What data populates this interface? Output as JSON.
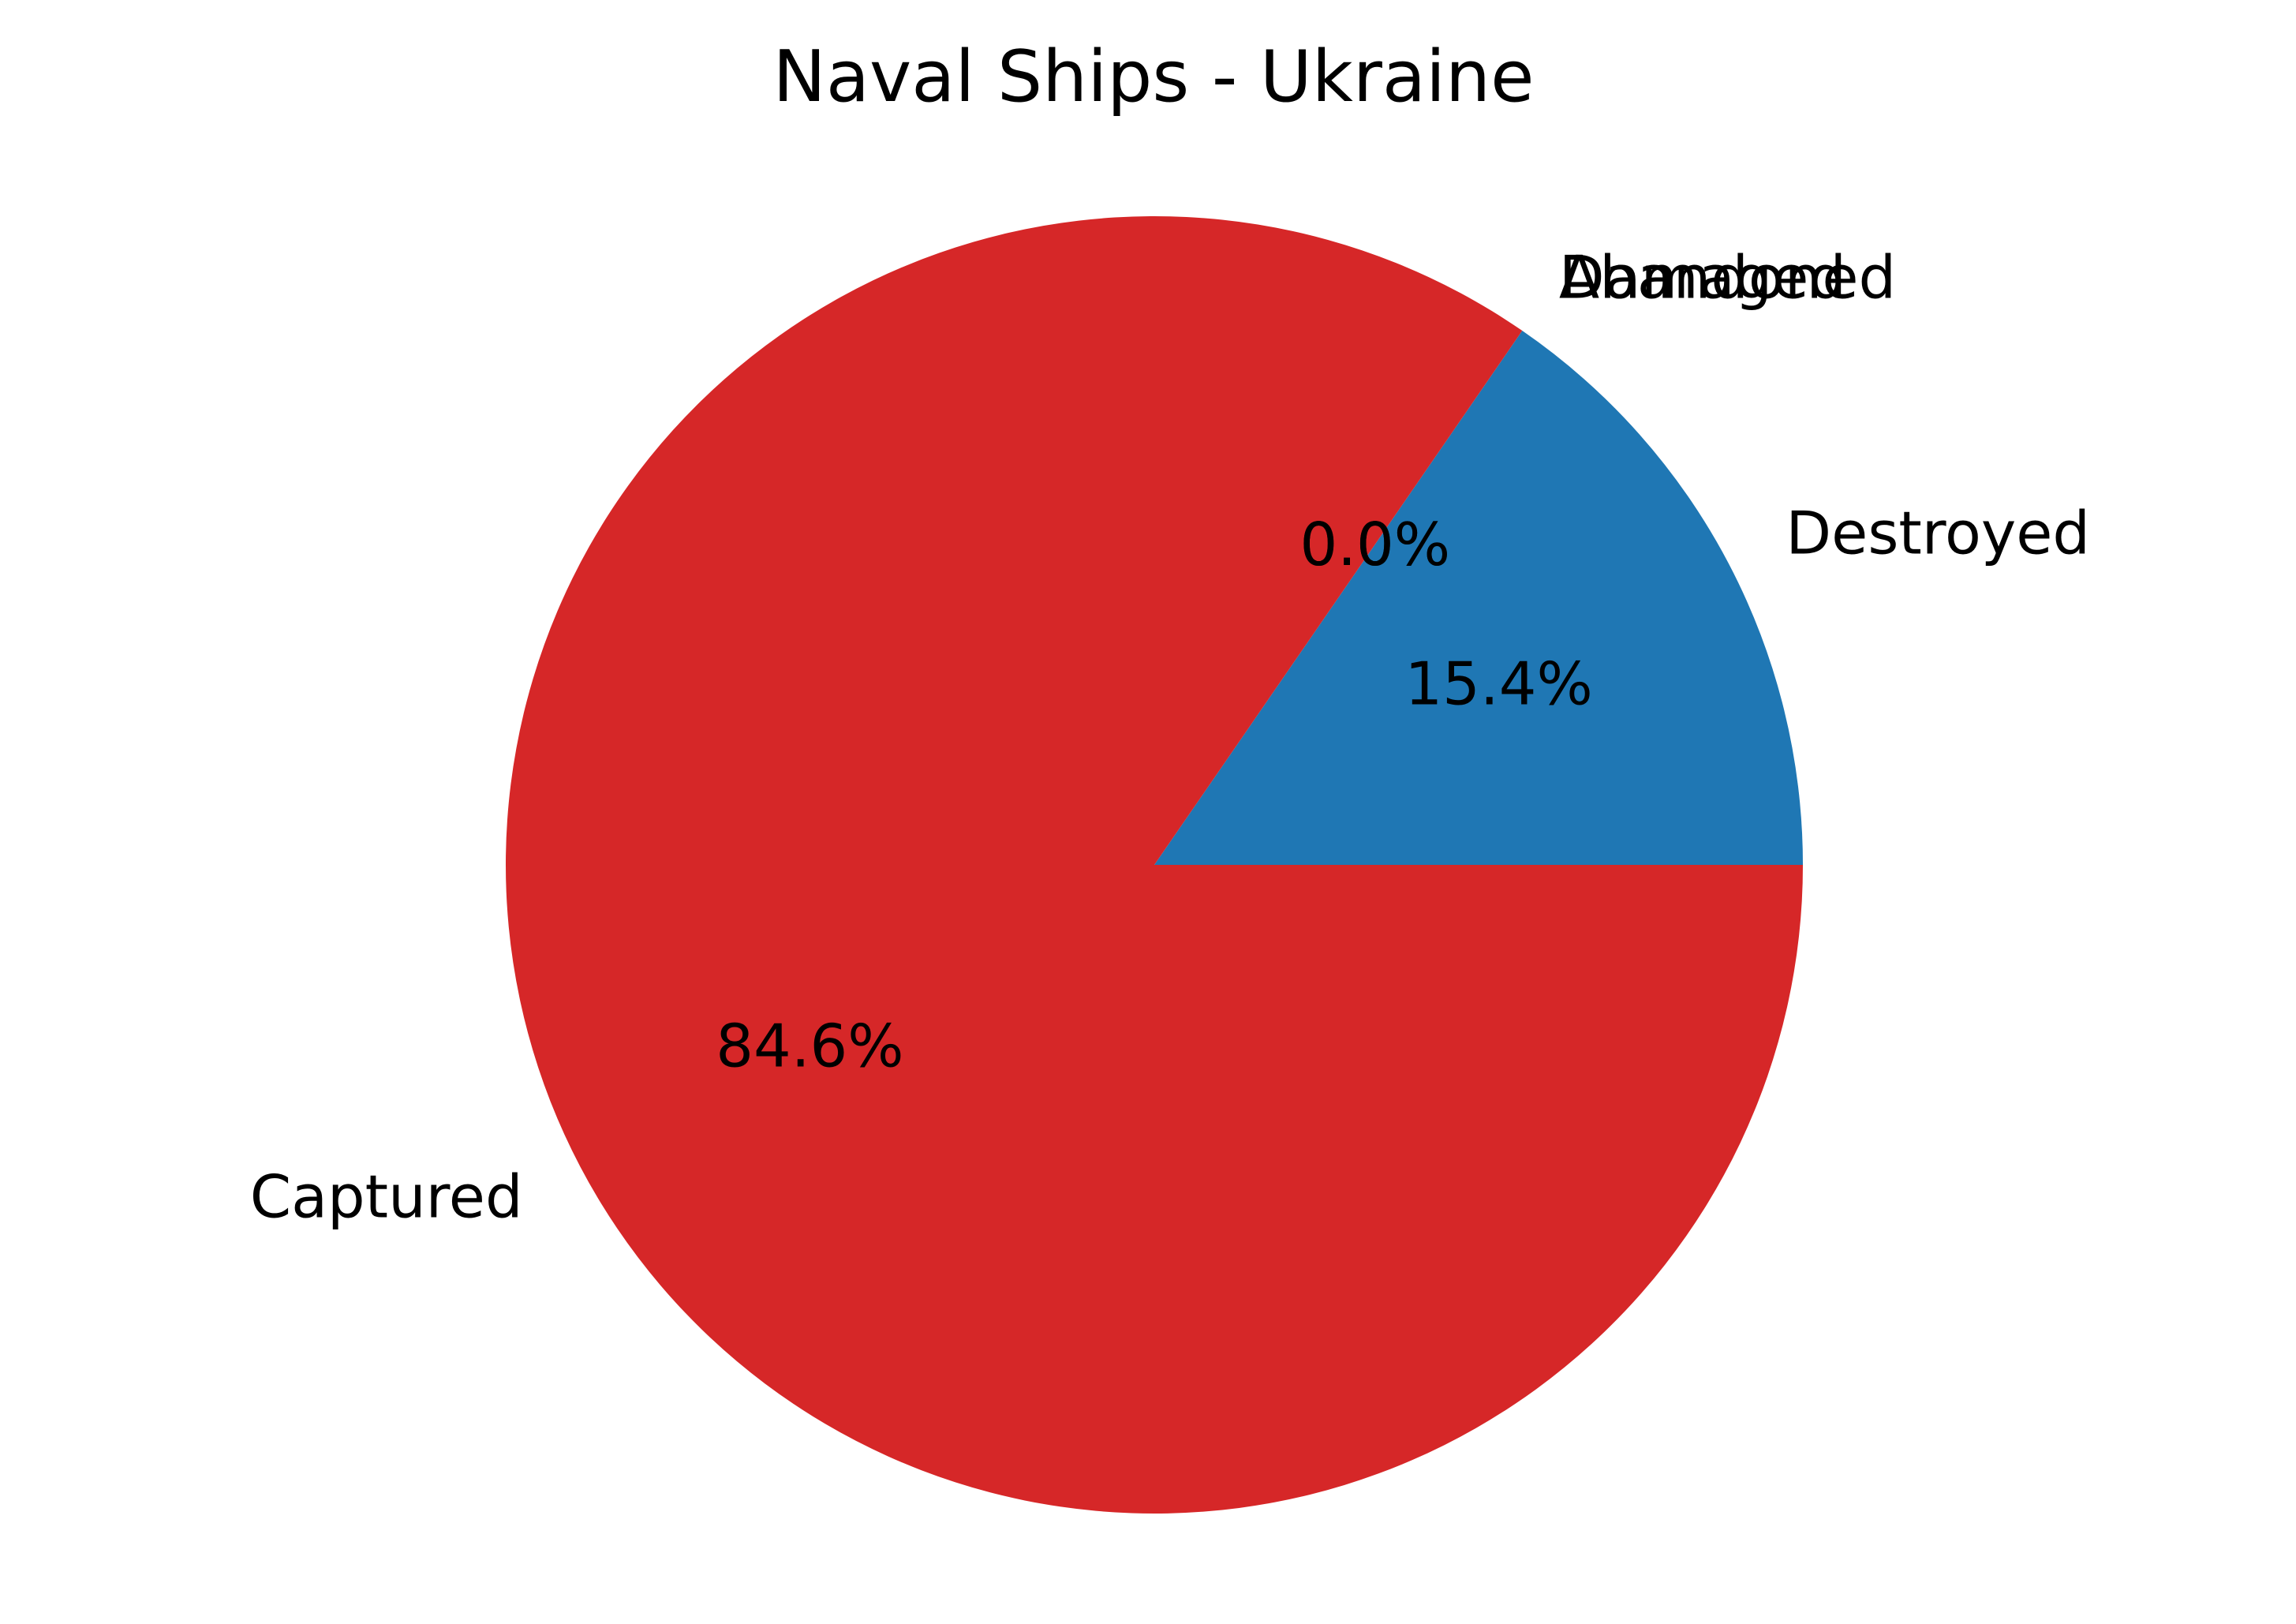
{
  "chart_data": {
    "type": "pie",
    "title": "Naval Ships - Ukraine",
    "slices": [
      {
        "label": "Destroyed",
        "value": 15.4,
        "pct_label": "15.4%",
        "color": "#1f77b4"
      },
      {
        "label": "Damaged",
        "value": 0.0,
        "pct_label": "0.0%",
        "color": "#ff7f0e"
      },
      {
        "label": "Abandoned",
        "value": 0.0,
        "pct_label": "0.0%",
        "color": "#2ca02c"
      },
      {
        "label": "Captured",
        "value": 84.6,
        "pct_label": "84.6%",
        "color": "#d62728"
      }
    ],
    "start_angle_deg": 0,
    "direction": "counterclockwise",
    "legend": "none"
  }
}
